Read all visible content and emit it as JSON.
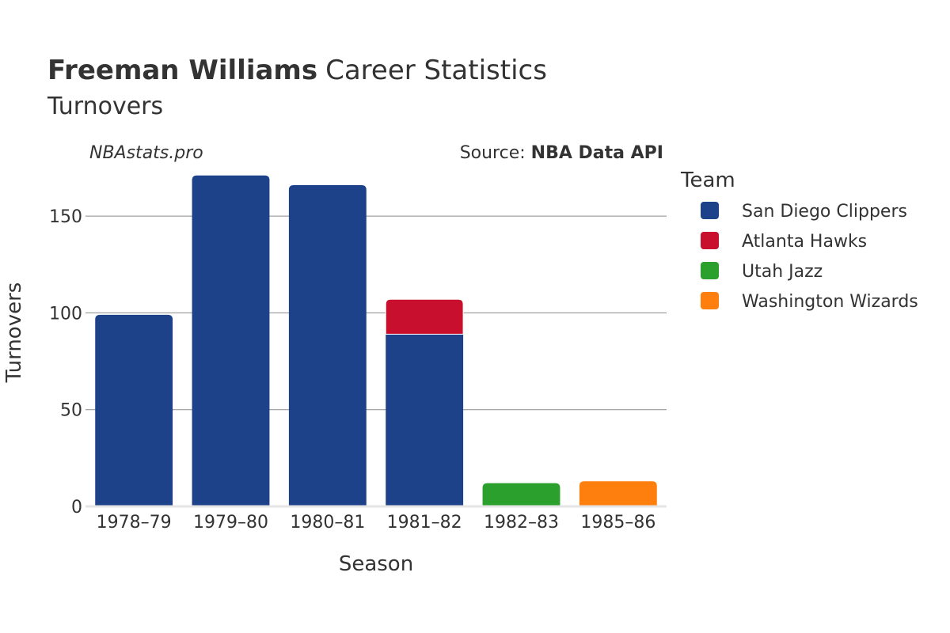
{
  "chart_data": {
    "type": "bar",
    "stacked": true,
    "title_bold": "Freeman Williams",
    "title_rest": "Career Statistics",
    "subtitle": "Turnovers",
    "credit_left": "NBAstats.pro",
    "credit_source_prefix": "Source: ",
    "credit_source_name": "NBA Data API",
    "xlabel": "Season",
    "ylabel": "Turnovers",
    "ylim": [
      0,
      175
    ],
    "yticks": [
      0,
      50,
      100,
      150
    ],
    "grid": true,
    "legend_title": "Team",
    "legend_position": "right",
    "categories": [
      "1978–79",
      "1979–80",
      "1980–81",
      "1981–82",
      "1982–83",
      "1985–86"
    ],
    "series": [
      {
        "name": "San Diego Clippers",
        "color": "#1d428a",
        "values": [
          99,
          171,
          166,
          89,
          0,
          0
        ]
      },
      {
        "name": "Atlanta Hawks",
        "color": "#c8102e",
        "values": [
          0,
          0,
          0,
          18,
          0,
          0
        ]
      },
      {
        "name": "Utah Jazz",
        "color": "#2ca02c",
        "values": [
          0,
          0,
          0,
          0,
          12,
          0
        ]
      },
      {
        "name": "Washington Wizards",
        "color": "#ff7f0e",
        "values": [
          0,
          0,
          0,
          0,
          0,
          13
        ]
      }
    ]
  }
}
